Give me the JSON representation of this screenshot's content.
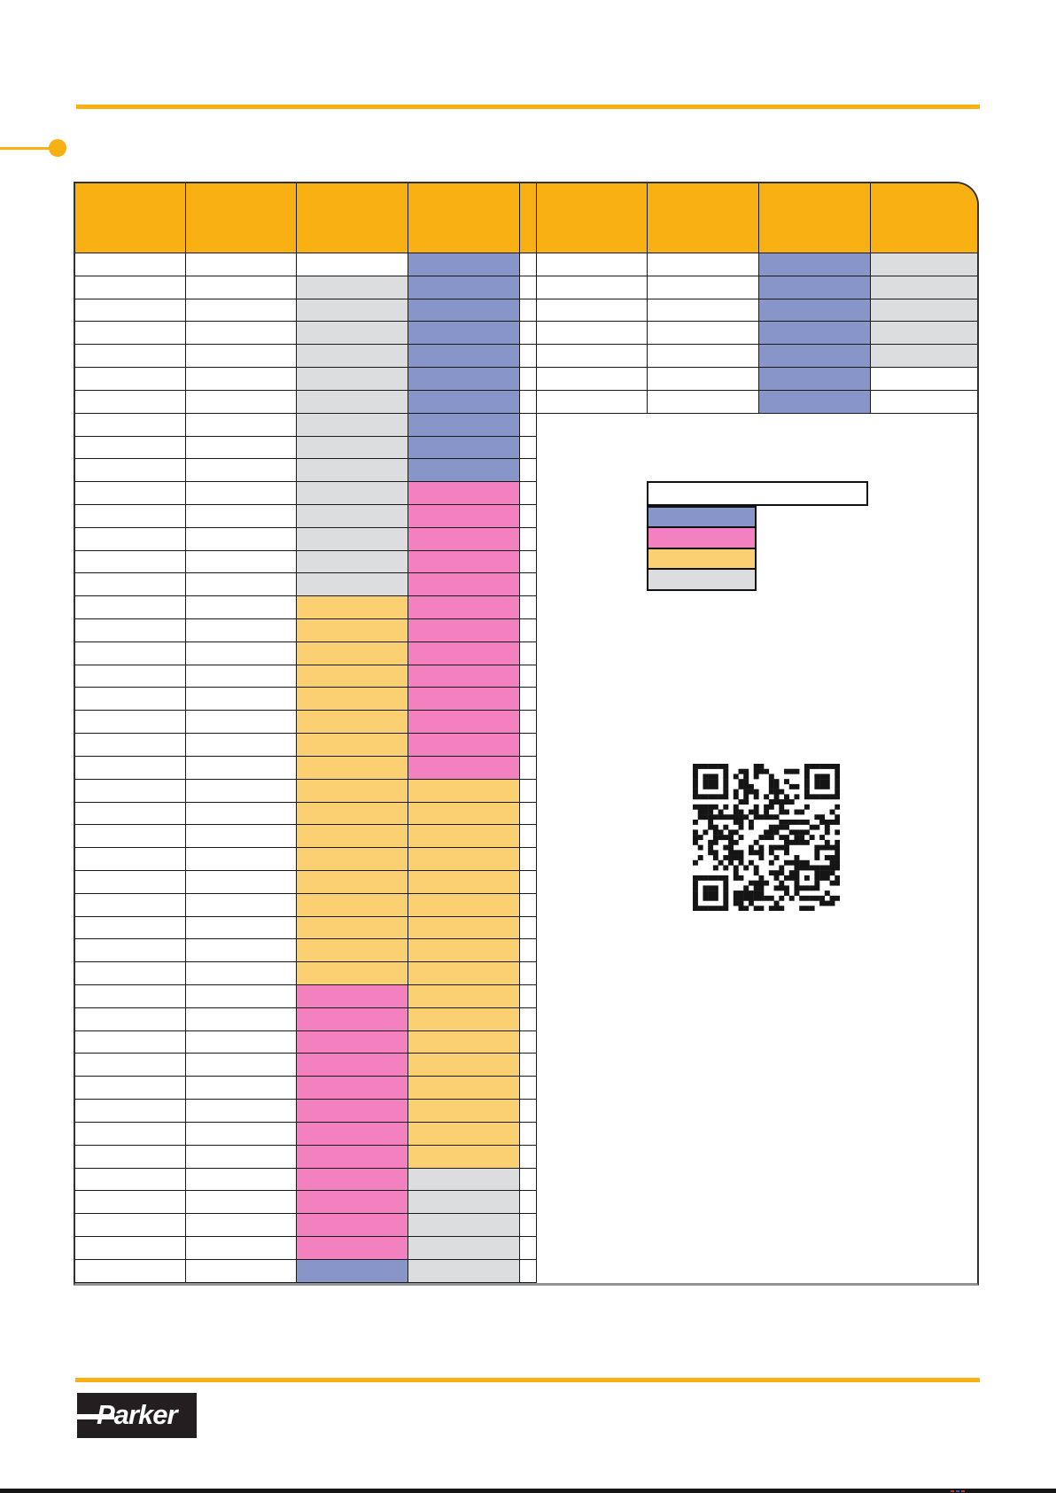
{
  "document": {
    "kind": "catalog-selection-table-page",
    "visible_text_note": "no readable text rendered on page",
    "brand_logo_text": "Parker"
  },
  "colors": {
    "accent_orange": "#F8B013",
    "cell_blue": "#8795C8",
    "cell_pink": "#F481BF",
    "cell_yellow": "#FAD072",
    "cell_gray": "#DCDDDE",
    "grid_line": "#1A1A1A",
    "logo_black": "#231F20"
  },
  "selection_table": {
    "header_cells": [
      "",
      "",
      "",
      "",
      "",
      "",
      "",
      "",
      ""
    ],
    "left_section": {
      "row_count": 45,
      "col3_color_ranges": [
        {
          "from": 1,
          "to": 1,
          "color": "white"
        },
        {
          "from": 2,
          "to": 15,
          "color": "gray"
        },
        {
          "from": 16,
          "to": 32,
          "color": "yellow"
        },
        {
          "from": 33,
          "to": 44,
          "color": "pink"
        },
        {
          "from": 45,
          "to": 45,
          "color": "blue"
        }
      ],
      "col4_color_ranges": [
        {
          "from": 1,
          "to": 10,
          "color": "blue"
        },
        {
          "from": 11,
          "to": 23,
          "color": "pink"
        },
        {
          "from": 24,
          "to": 40,
          "color": "yellow"
        },
        {
          "from": 41,
          "to": 45,
          "color": "gray"
        }
      ]
    },
    "right_section": {
      "row_count": 7,
      "col7_color_ranges": [
        {
          "from": 1,
          "to": 7,
          "color": "blue"
        }
      ],
      "col8_color_ranges": [
        {
          "from": 1,
          "to": 5,
          "color": "gray"
        },
        {
          "from": 6,
          "to": 7,
          "color": "white"
        }
      ]
    }
  },
  "legend": {
    "title_text": "",
    "items": [
      {
        "label_text": "",
        "color": "blue"
      },
      {
        "label_text": "",
        "color": "pink"
      },
      {
        "label_text": "",
        "color": "yellow"
      },
      {
        "label_text": "",
        "color": "gray"
      }
    ]
  },
  "qr_code": {
    "modules": 29
  }
}
